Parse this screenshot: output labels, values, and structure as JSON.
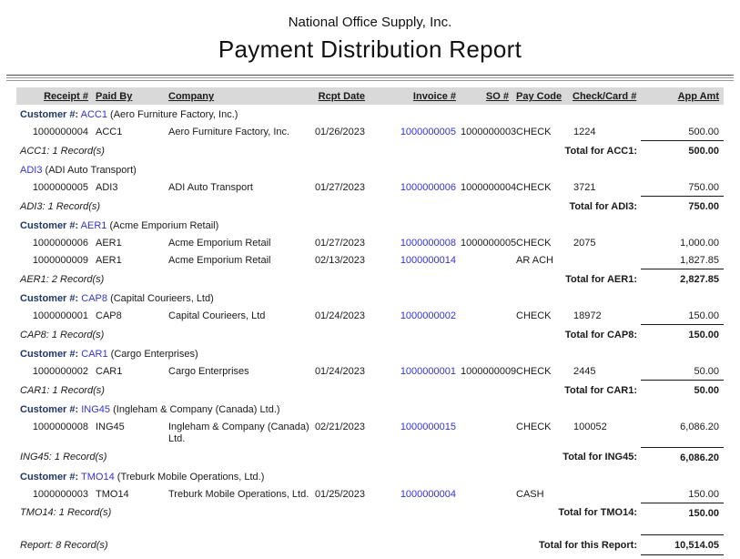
{
  "report": {
    "company_name": "National Office Supply, Inc.",
    "title": "Payment Distribution Report"
  },
  "colors": {
    "link_blue": "#3333cc",
    "customer_label_navy": "#1f3864",
    "header_band_gray": "#d9d9d9"
  },
  "table": {
    "columns": [
      "Receipt #",
      "Paid By",
      "Company",
      "Rcpt Date",
      "Invoice  #",
      "SO #",
      "Pay Code",
      "Check/Card #",
      "App Amt"
    ]
  },
  "groups": [
    {
      "prefix": "Customer #:",
      "code": "ACC1",
      "name": "(Aero Furniture Factory, Inc.)",
      "rows": [
        {
          "receipt": "1000000004",
          "paid_by": "ACC1",
          "company": "Aero Furniture Factory, Inc.",
          "date": "01/26/2023",
          "invoice": "1000000005",
          "so": "1000000003",
          "pay_code": "CHECK",
          "check_card": "1224",
          "amount": "500.00"
        }
      ],
      "record_count": "ACC1: 1 Record(s)",
      "total_label": "Total for ACC1:",
      "total": "500.00"
    },
    {
      "prefix": "",
      "code": "ADI3",
      "name": "(ADI Auto Transport)",
      "rows": [
        {
          "receipt": "1000000005",
          "paid_by": "ADI3",
          "company": "ADI Auto Transport",
          "date": "01/27/2023",
          "invoice": "1000000006",
          "so": "1000000004",
          "pay_code": "CHECK",
          "check_card": "3721",
          "amount": "750.00"
        }
      ],
      "record_count": "ADI3: 1 Record(s)",
      "total_label": "Total for ADI3:",
      "total": "750.00"
    },
    {
      "prefix": "Customer #:",
      "code": "AER1",
      "name": "(Acme Emporium Retail)",
      "rows": [
        {
          "receipt": "1000000006",
          "paid_by": "AER1",
          "company": "Acme Emporium Retail",
          "date": "01/27/2023",
          "invoice": "1000000008",
          "so": "1000000005",
          "pay_code": "CHECK",
          "check_card": "2075",
          "amount": "1,000.00"
        },
        {
          "receipt": "1000000009",
          "paid_by": "AER1",
          "company": "Acme Emporium Retail",
          "date": "02/13/2023",
          "invoice": "1000000014",
          "so": "",
          "pay_code": "AR ACH",
          "check_card": "",
          "amount": "1,827.85"
        }
      ],
      "record_count": "AER1: 2 Record(s)",
      "total_label": "Total for AER1:",
      "total": "2,827.85"
    },
    {
      "prefix": "Customer #:",
      "code": "CAP8",
      "name": "(Capital Courieers, Ltd)",
      "rows": [
        {
          "receipt": "1000000001",
          "paid_by": "CAP8",
          "company": "Capital Courieers, Ltd",
          "date": "01/24/2023",
          "invoice": "1000000002",
          "so": "",
          "pay_code": "CHECK",
          "check_card": "18972",
          "amount": "150.00"
        }
      ],
      "record_count": "CAP8: 1 Record(s)",
      "total_label": "Total for CAP8:",
      "total": "150.00"
    },
    {
      "prefix": "Customer #:",
      "code": "CAR1",
      "name": "(Cargo Enterprises)",
      "rows": [
        {
          "receipt": "1000000002",
          "paid_by": "CAR1",
          "company": "Cargo Enterprises",
          "date": "01/24/2023",
          "invoice": "1000000001",
          "so": "1000000009",
          "pay_code": "CHECK",
          "check_card": "2445",
          "amount": "50.00"
        }
      ],
      "record_count": "CAR1: 1 Record(s)",
      "total_label": "Total for CAR1:",
      "total": "50.00"
    },
    {
      "prefix": "Customer #:",
      "code": "ING45",
      "name": "(Ingleham & Company (Canada) Ltd.)",
      "rows": [
        {
          "receipt": "1000000008",
          "paid_by": "ING45",
          "company": "Ingleham & Company (Canada) Ltd.",
          "date": "02/21/2023",
          "invoice": "1000000015",
          "so": "",
          "pay_code": "CHECK",
          "check_card": "100052",
          "amount": "6,086.20"
        }
      ],
      "record_count": "ING45: 1 Record(s)",
      "total_label": "Total for ING45:",
      "total": "6,086.20"
    },
    {
      "prefix": "Customer #:",
      "code": "TMO14",
      "name": "(Treburk Mobile Operations, Ltd.)",
      "rows": [
        {
          "receipt": "1000000003",
          "paid_by": "TMO14",
          "company": "Treburk Mobile Operations, Ltd.",
          "date": "01/25/2023",
          "invoice": "1000000004",
          "so": "",
          "pay_code": "CASH",
          "check_card": "",
          "amount": "150.00"
        }
      ],
      "record_count": "TMO14: 1 Record(s)",
      "total_label": "Total for TMO14:",
      "total": "150.00"
    }
  ],
  "footer": {
    "record_count": "Report: 8 Record(s)",
    "total_label": "Total for this Report:",
    "total": "10,514.05"
  }
}
